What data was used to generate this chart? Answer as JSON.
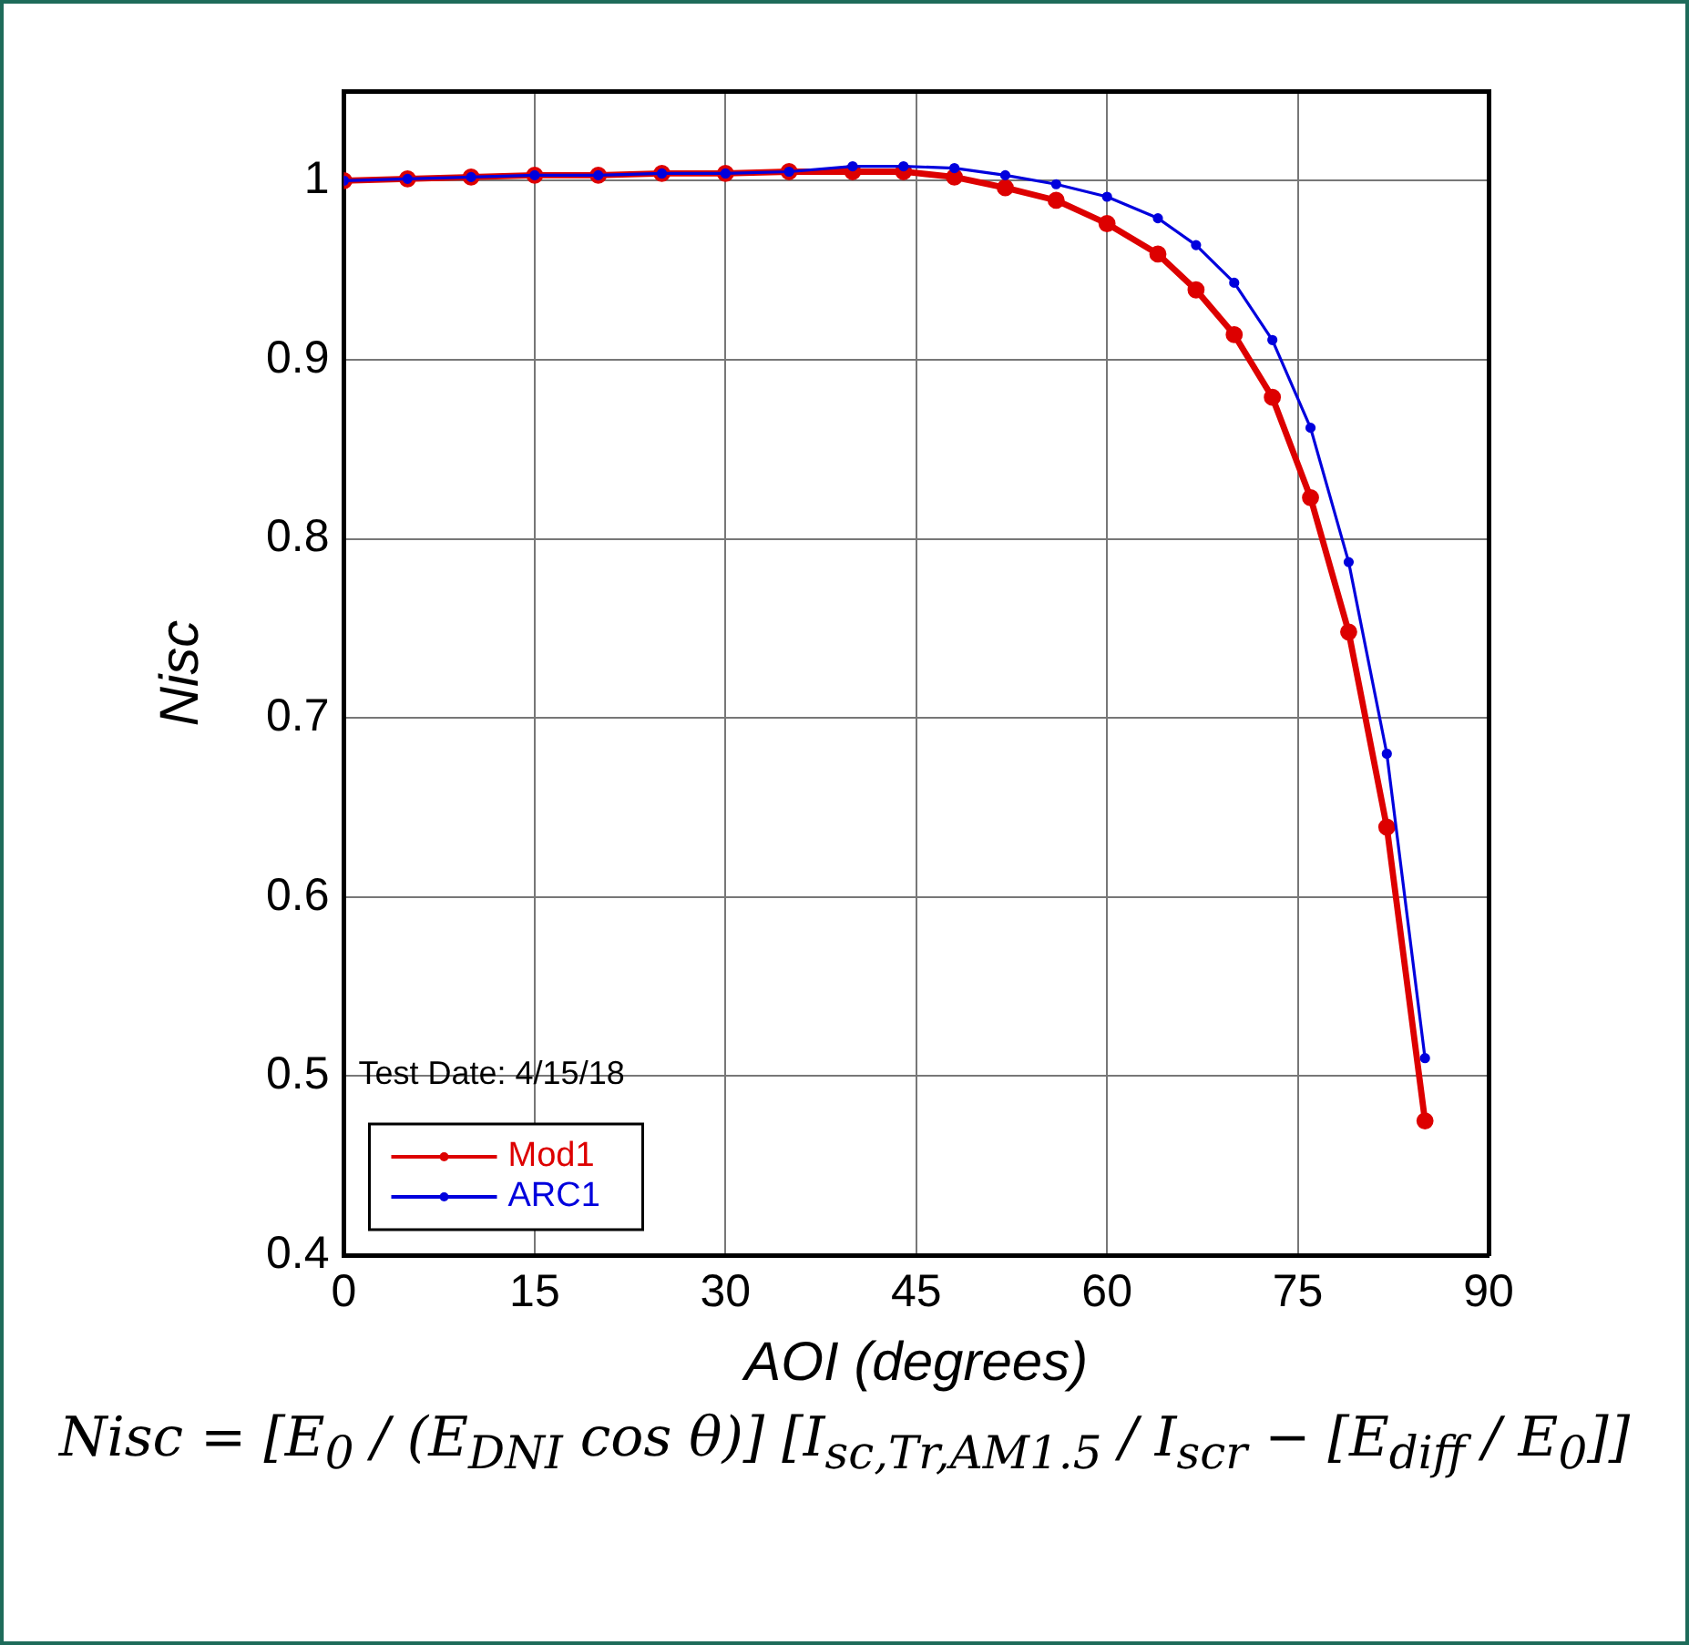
{
  "chart_data": {
    "type": "line",
    "xlabel": "AOI (degrees)",
    "ylabel": "Nisc",
    "x": [
      0,
      5,
      10,
      15,
      20,
      25,
      30,
      35,
      40,
      44,
      48,
      52,
      56,
      60,
      64,
      67,
      70,
      73,
      76,
      79,
      82,
      85
    ],
    "series": [
      {
        "name": "Mod1",
        "color": "#dd0000",
        "values": [
          1.0,
          1.001,
          1.002,
          1.003,
          1.003,
          1.004,
          1.004,
          1.005,
          1.005,
          1.005,
          1.002,
          0.996,
          0.989,
          0.976,
          0.959,
          0.939,
          0.914,
          0.879,
          0.823,
          0.748,
          0.639,
          0.475
        ]
      },
      {
        "name": "ARC1",
        "color": "#0000dd",
        "values": [
          1.0,
          1.001,
          1.002,
          1.003,
          1.003,
          1.004,
          1.004,
          1.005,
          1.008,
          1.008,
          1.007,
          1.003,
          0.998,
          0.991,
          0.979,
          0.964,
          0.943,
          0.911,
          0.862,
          0.787,
          0.68,
          0.51
        ]
      }
    ],
    "xlim": [
      0,
      90
    ],
    "xticks": [
      0,
      15,
      30,
      45,
      60,
      75,
      90
    ],
    "ylim": [
      0.4,
      1.05
    ],
    "yticks": [
      0.4,
      0.5,
      0.6,
      0.7,
      0.8,
      0.9,
      1
    ],
    "grid": true,
    "legend": "bottom left",
    "marker": "circle",
    "line_style": "solid",
    "annotations": [
      "Test Date: 4/15/18",
      "Nisc = [E$_{0}$ / (E$_{DNI}$ cos θ)] [I$_{sc,Tr,AM1.5}$ / I$_{scr}$ − [E$_{diff}$ / E$_{0}$]]"
    ]
  }
}
